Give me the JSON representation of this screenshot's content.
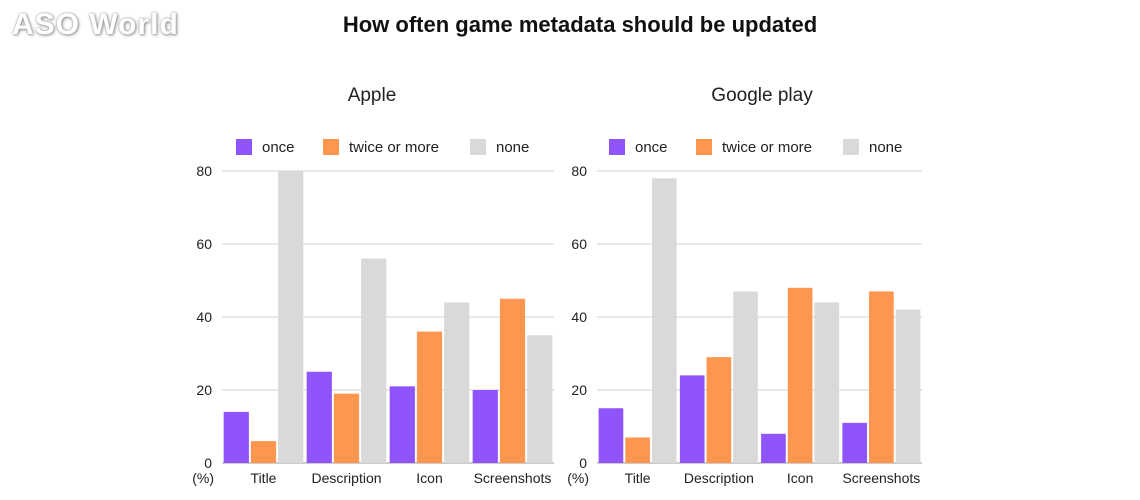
{
  "brand": {
    "logo_text": "ASO World"
  },
  "title": "How often game metadata should be updated",
  "colors": {
    "once": "#8f54fb",
    "twice": "#ff964f",
    "none": "#d9d9d9",
    "grid": "#d0d0d0",
    "axis": "#999999"
  },
  "chart_data": [
    {
      "type": "bar",
      "title": "Apple",
      "categories": [
        "Title",
        "Description",
        "Icon",
        "Screenshots"
      ],
      "series": [
        {
          "name": "once",
          "values": [
            14,
            25,
            21,
            20
          ]
        },
        {
          "name": "twice or more",
          "values": [
            6,
            19,
            36,
            45
          ]
        },
        {
          "name": "none",
          "values": [
            80,
            56,
            44,
            35
          ]
        }
      ],
      "ylim": [
        0,
        80
      ],
      "yticks": [
        0,
        20,
        40,
        60,
        80
      ],
      "ylabel": "(%)",
      "grid": true,
      "legend": "top"
    },
    {
      "type": "bar",
      "title": "Google play",
      "categories": [
        "Title",
        "Description",
        "Icon",
        "Screenshots"
      ],
      "series": [
        {
          "name": "once",
          "values": [
            15,
            24,
            8,
            11
          ]
        },
        {
          "name": "twice or more",
          "values": [
            7,
            29,
            48,
            47
          ]
        },
        {
          "name": "none",
          "values": [
            78,
            47,
            44,
            42
          ]
        }
      ],
      "ylim": [
        0,
        80
      ],
      "yticks": [
        0,
        20,
        40,
        60,
        80
      ],
      "ylabel": "(%)",
      "grid": true,
      "legend": "top"
    }
  ]
}
